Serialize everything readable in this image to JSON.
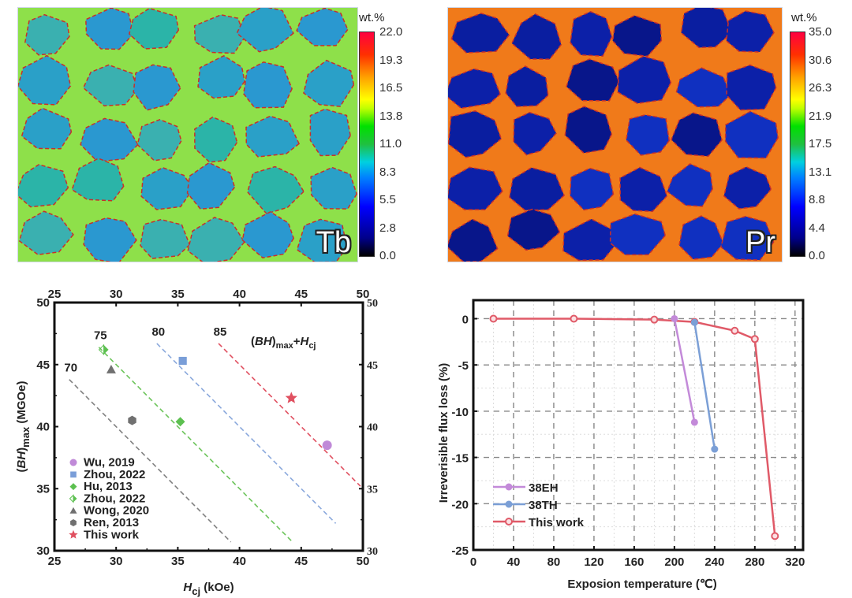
{
  "maps": [
    {
      "element": "Tb",
      "unit": "wt.%",
      "colorbar_ticks": [
        "22.0",
        "19.3",
        "16.5",
        "13.8",
        "11.0",
        "8.3",
        "5.5",
        "2.8",
        "0.0"
      ]
    },
    {
      "element": "Pr",
      "unit": "wt.%",
      "colorbar_ticks": [
        "35.0",
        "30.6",
        "26.3",
        "21.9",
        "17.5",
        "13.1",
        "8.8",
        "4.4",
        "0.0"
      ]
    }
  ],
  "chart_data": [
    {
      "type": "scatter",
      "title": "",
      "annotation": "(BH)max+Hcj",
      "xlabel": "Hcj (kOe)",
      "ylabel": "(BH)max (MGOe)",
      "xlim": [
        25,
        50
      ],
      "ylim": [
        30,
        50
      ],
      "xticks": [
        25,
        30,
        35,
        40,
        45,
        50
      ],
      "yticks": [
        30,
        35,
        40,
        45,
        50
      ],
      "legend_position": "bottom-left",
      "iso_lines": [
        {
          "label": "70",
          "sum": 70,
          "color": "#808080",
          "x_range": [
            26.2,
            39.3
          ]
        },
        {
          "label": "75",
          "sum": 75,
          "color": "#6cc45a",
          "x_range": [
            28.6,
            44.2
          ]
        },
        {
          "label": "80",
          "sum": 80,
          "color": "#8aa8dc",
          "x_range": [
            33.3,
            47.8
          ]
        },
        {
          "label": "85",
          "sum": 85,
          "color": "#e05060",
          "x_range": [
            38.3,
            49.8
          ]
        }
      ],
      "series": [
        {
          "name": "Wu, 2019",
          "marker": "circle",
          "color": "#c08ad8",
          "x": 47.1,
          "y": 38.5
        },
        {
          "name": "Zhou, 2022",
          "marker": "square",
          "color": "#7a9ed8",
          "x": 35.4,
          "y": 45.3
        },
        {
          "name": "Hu, 2013",
          "marker": "diamond",
          "color": "#5cc050",
          "x": 35.2,
          "y": 40.4
        },
        {
          "name": "Zhou, 2022",
          "marker": "half-diamond",
          "color": "#5cc050",
          "x": 29.0,
          "y": 46.2
        },
        {
          "name": "Wong, 2020",
          "marker": "triangle",
          "color": "#707070",
          "x": 29.6,
          "y": 44.6
        },
        {
          "name": "Ren, 2013",
          "marker": "hexagon",
          "color": "#707070",
          "x": 31.3,
          "y": 40.5
        },
        {
          "name": "This work",
          "marker": "star",
          "color": "#e05060",
          "x": 44.2,
          "y": 42.3
        }
      ]
    },
    {
      "type": "line",
      "title": "",
      "xlabel": "Exposion temperature (℃)",
      "ylabel": "Irreverisible flux loss (%)",
      "xlim": [
        0,
        328
      ],
      "ylim": [
        -25,
        2
      ],
      "xticks": [
        0,
        40,
        80,
        120,
        160,
        200,
        240,
        280,
        320
      ],
      "yticks": [
        0,
        -5,
        -10,
        -15,
        -20,
        -25
      ],
      "grid": true,
      "legend_position": "bottom-left",
      "series": [
        {
          "name": "38EH",
          "color": "#c38ad9",
          "marker": "filled-circle",
          "x": [
            200,
            220
          ],
          "y": [
            0,
            -11.2
          ]
        },
        {
          "name": "38TH",
          "color": "#7b9fd6",
          "marker": "filled-circle",
          "x": [
            220,
            240
          ],
          "y": [
            -0.4,
            -14.1
          ]
        },
        {
          "name": "This work",
          "color": "#e05a68",
          "marker": "open-circle",
          "x": [
            20,
            100,
            180,
            220,
            260,
            280,
            300
          ],
          "y": [
            0,
            0,
            -0.1,
            -0.35,
            -1.3,
            -2.2,
            -23.5
          ]
        }
      ]
    }
  ]
}
